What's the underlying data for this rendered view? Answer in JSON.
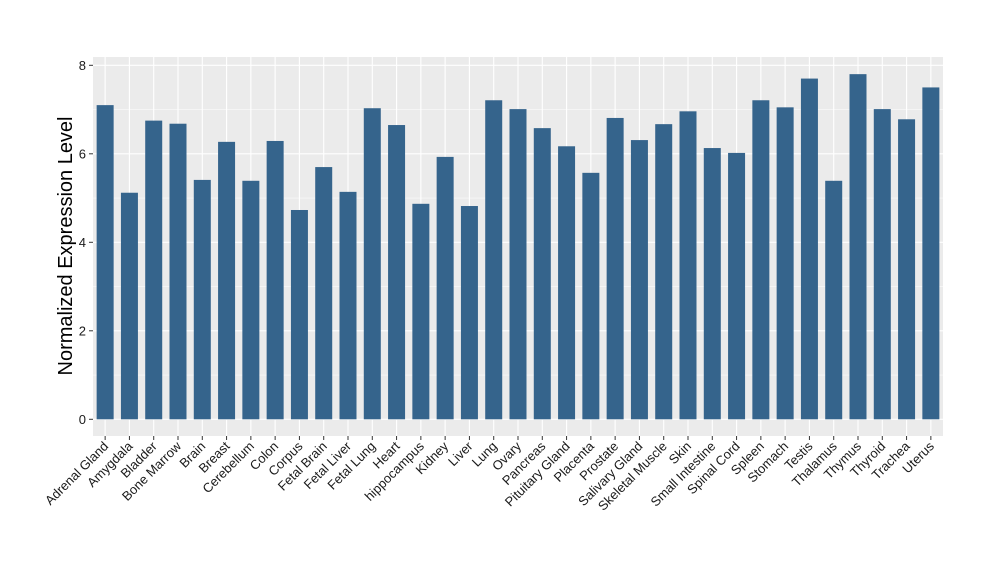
{
  "chart_data": {
    "type": "bar",
    "title": "",
    "xlabel": "",
    "ylabel": "Normalized Expression Level",
    "ylim": [
      -0.4,
      8.2
    ],
    "yticks": [
      0,
      2,
      4,
      6,
      8
    ],
    "grid": true,
    "bar_color": "#35648C",
    "panel_color": "#EBEBEB",
    "categories": [
      "Adrenal Gland",
      "Amygdala",
      "Bladder",
      "Bone Marrow",
      "Brain",
      "Breast",
      "Cerebellum",
      "Colon",
      "Corpus",
      "Fetal Brain",
      "Fetal Liver",
      "Fetal Lung",
      "Heart",
      "hippocampus",
      "Kidney",
      "Liver",
      "Lung",
      "Ovary",
      "Pancreas",
      "Pituitary Gland",
      "Placenta",
      "Prostate",
      "Salivary Gland",
      "Skeletal Muscle",
      "Skin",
      "Small Intestine",
      "Spinal Cord",
      "Spleen",
      "Stomach",
      "Testis",
      "Thalamus",
      "Thymus",
      "Thyroid",
      "Trachea",
      "Uterus"
    ],
    "values": [
      7.1,
      5.12,
      6.75,
      6.68,
      5.41,
      6.27,
      5.39,
      6.29,
      4.73,
      5.7,
      5.14,
      7.03,
      6.65,
      4.87,
      5.93,
      4.82,
      7.21,
      7.01,
      6.58,
      6.17,
      5.57,
      6.81,
      6.31,
      6.67,
      6.96,
      6.13,
      6.02,
      7.21,
      7.05,
      7.7,
      5.39,
      7.8,
      7.01,
      6.78,
      7.5
    ]
  }
}
